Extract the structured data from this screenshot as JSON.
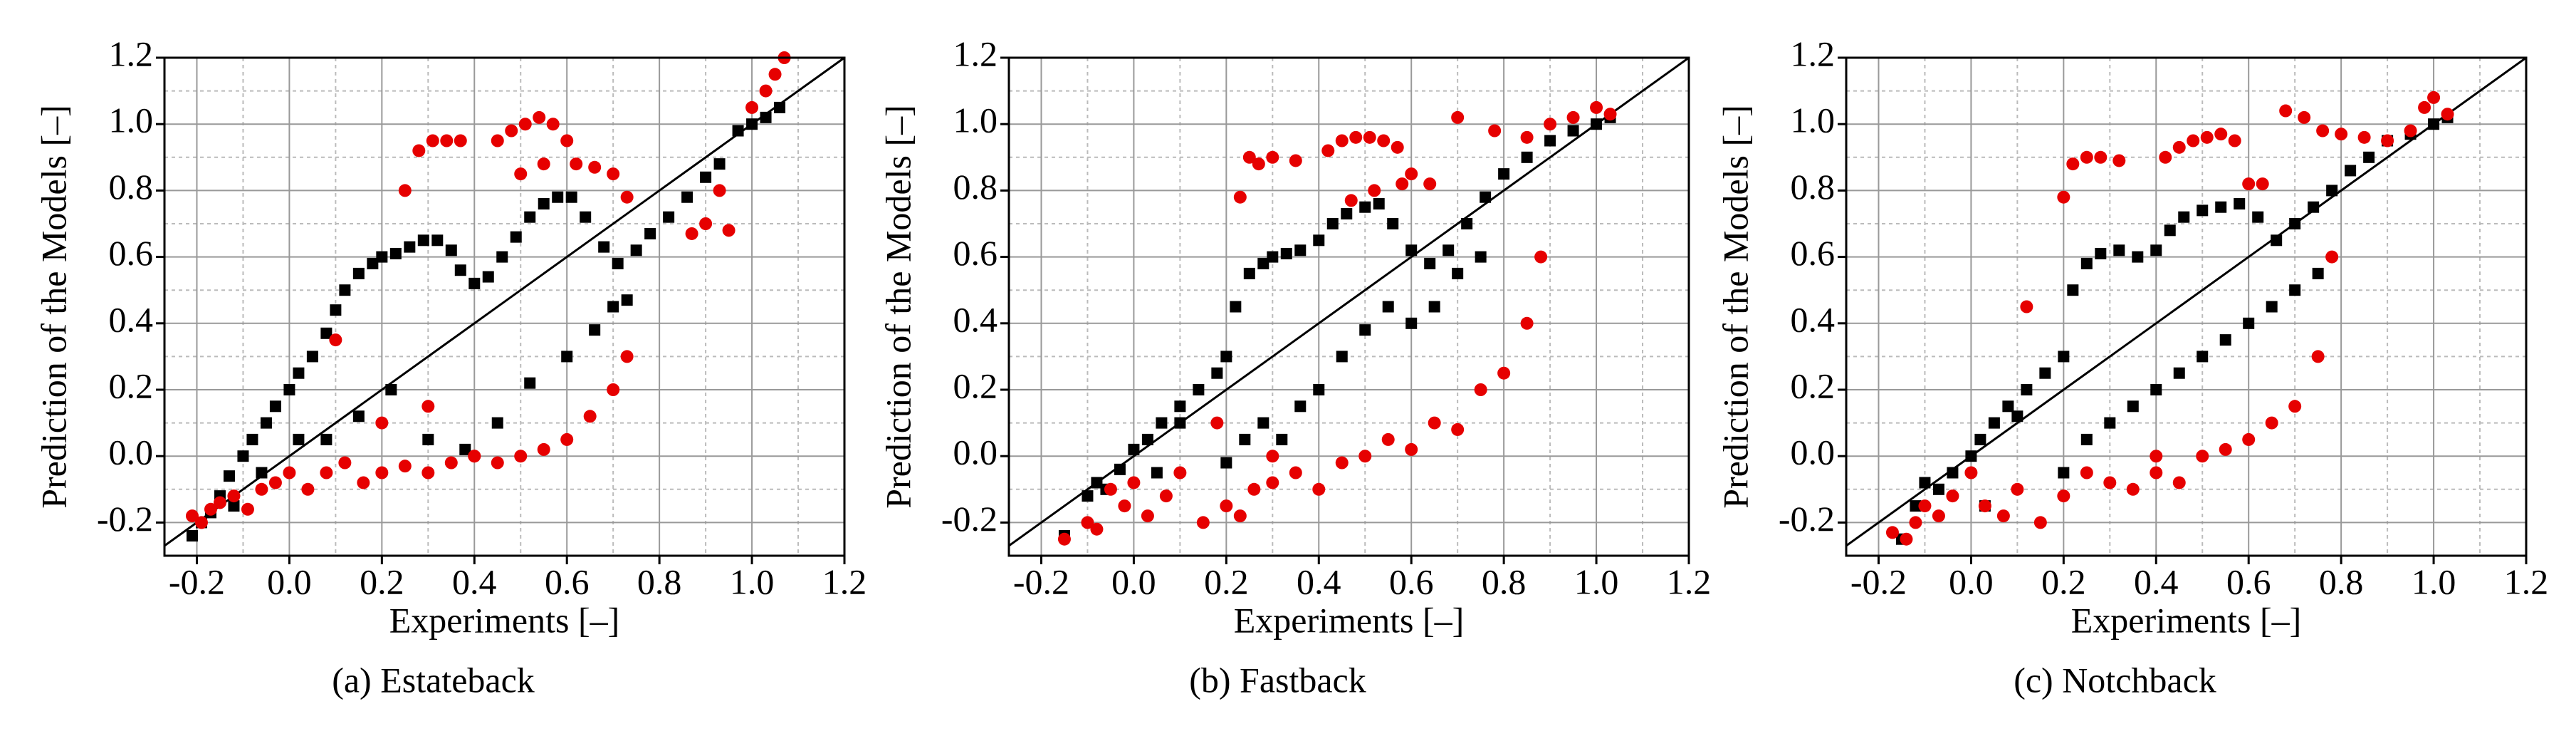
{
  "chart_data": [
    {
      "type": "scatter",
      "caption": "(a) Estateback",
      "xlabel": "Experiments [–]",
      "ylabel": "Prediction of the Models [–]",
      "xlim": [
        -0.27,
        1.2
      ],
      "ylim": [
        -0.3,
        1.2
      ],
      "xticks": [
        -0.2,
        {
          "value": 0,
          "label": "0.0"
        },
        0.2,
        0.4,
        0.6,
        0.8,
        {
          "value": 1,
          "label": "1.0"
        },
        1.2
      ],
      "yticks": [
        -0.2,
        {
          "value": 0,
          "label": "0.0"
        },
        0.2,
        0.4,
        0.6,
        0.8,
        {
          "value": 1,
          "label": "1.0"
        },
        1.2
      ],
      "grid": true,
      "diagonal": true,
      "series": [
        {
          "color": "#000000",
          "marker": "square",
          "x": [
            -0.21,
            -0.19,
            -0.17,
            -0.15,
            -0.13,
            -0.1,
            -0.08,
            -0.05,
            -0.03,
            0.0,
            0.02,
            0.05,
            0.08,
            0.1,
            0.12,
            0.15,
            0.18,
            0.2,
            0.23,
            0.26,
            0.29,
            0.32,
            0.35,
            0.37,
            0.4,
            0.43,
            0.46,
            0.49,
            0.52,
            0.55,
            0.58,
            0.61,
            0.64,
            0.68,
            0.71,
            0.75,
            0.78,
            0.82,
            0.86,
            0.9,
            0.93,
            0.97,
            1.0,
            1.03,
            1.06,
            0.08,
            0.15,
            0.22,
            0.3,
            0.38,
            0.45,
            0.52,
            0.6,
            0.66,
            0.7,
            0.73,
            -0.12,
            -0.06,
            0.02
          ],
          "y": [
            -0.24,
            -0.2,
            -0.17,
            -0.12,
            -0.06,
            0.0,
            0.05,
            0.1,
            0.15,
            0.2,
            0.25,
            0.3,
            0.37,
            0.44,
            0.5,
            0.55,
            0.58,
            0.6,
            0.61,
            0.63,
            0.65,
            0.65,
            0.62,
            0.56,
            0.52,
            0.54,
            0.6,
            0.66,
            0.72,
            0.76,
            0.78,
            0.78,
            0.72,
            0.63,
            0.58,
            0.62,
            0.67,
            0.72,
            0.78,
            0.84,
            0.88,
            0.98,
            1.0,
            1.02,
            1.05,
            0.05,
            0.12,
            0.2,
            0.05,
            0.02,
            0.1,
            0.22,
            0.3,
            0.38,
            0.45,
            0.47,
            -0.15,
            -0.05,
            0.05
          ]
        },
        {
          "color": "#e60000",
          "marker": "circle",
          "x": [
            -0.21,
            -0.19,
            -0.17,
            -0.15,
            -0.12,
            -0.09,
            -0.06,
            -0.03,
            0.0,
            0.04,
            0.08,
            0.12,
            0.16,
            0.2,
            0.25,
            0.3,
            0.35,
            0.4,
            0.45,
            0.5,
            0.55,
            0.6,
            0.65,
            0.7,
            0.73,
            0.25,
            0.28,
            0.31,
            0.34,
            0.37,
            0.45,
            0.48,
            0.51,
            0.54,
            0.57,
            0.6,
            0.5,
            0.55,
            0.62,
            0.66,
            0.7,
            0.73,
            0.87,
            0.9,
            0.93,
            0.95,
            1.0,
            1.03,
            1.05,
            1.07,
            0.1,
            0.2,
            0.3,
            0.4
          ],
          "y": [
            -0.18,
            -0.2,
            -0.16,
            -0.14,
            -0.12,
            -0.16,
            -0.1,
            -0.08,
            -0.05,
            -0.1,
            -0.05,
            -0.02,
            -0.08,
            -0.05,
            -0.03,
            -0.05,
            -0.02,
            0.0,
            -0.02,
            0.0,
            0.02,
            0.05,
            0.12,
            0.2,
            0.3,
            0.8,
            0.92,
            0.95,
            0.95,
            0.95,
            0.95,
            0.98,
            1.0,
            1.02,
            1.0,
            0.95,
            0.85,
            0.88,
            0.88,
            0.87,
            0.85,
            0.78,
            0.67,
            0.7,
            0.8,
            0.68,
            1.05,
            1.1,
            1.15,
            1.2,
            0.35,
            0.1,
            0.15,
            0.0
          ]
        }
      ]
    },
    {
      "type": "scatter",
      "caption": "(b) Fastback",
      "xlabel": "Experiments [–]",
      "ylabel": "Prediction of the Models [–]",
      "xlim": [
        -0.27,
        1.2
      ],
      "ylim": [
        -0.3,
        1.2
      ],
      "xticks": [
        -0.2,
        {
          "value": 0,
          "label": "0.0"
        },
        0.2,
        0.4,
        0.6,
        0.8,
        {
          "value": 1,
          "label": "1.0"
        },
        1.2
      ],
      "yticks": [
        -0.2,
        {
          "value": 0,
          "label": "0.0"
        },
        0.2,
        0.4,
        0.6,
        0.8,
        {
          "value": 1,
          "label": "1.0"
        },
        1.2
      ],
      "grid": true,
      "diagonal": true,
      "series": [
        {
          "color": "#000000",
          "marker": "square",
          "x": [
            -0.15,
            -0.1,
            -0.08,
            -0.06,
            -0.03,
            0.0,
            0.03,
            0.06,
            0.1,
            0.14,
            0.18,
            0.2,
            0.22,
            0.25,
            0.28,
            0.3,
            0.33,
            0.36,
            0.4,
            0.43,
            0.46,
            0.5,
            0.53,
            0.56,
            0.6,
            0.64,
            0.68,
            0.72,
            0.76,
            0.8,
            0.85,
            0.9,
            0.95,
            1.0,
            1.03,
            0.2,
            0.24,
            0.28,
            0.32,
            0.36,
            0.4,
            0.45,
            0.5,
            0.55,
            0.6,
            0.65,
            0.7,
            0.75,
            0.05,
            0.1
          ],
          "y": [
            -0.24,
            -0.12,
            -0.08,
            -0.1,
            -0.04,
            0.02,
            0.05,
            0.1,
            0.15,
            0.2,
            0.25,
            0.3,
            0.45,
            0.55,
            0.58,
            0.6,
            0.61,
            0.62,
            0.65,
            0.7,
            0.73,
            0.75,
            0.76,
            0.7,
            0.62,
            0.58,
            0.62,
            0.7,
            0.78,
            0.85,
            0.9,
            0.95,
            0.98,
            1.0,
            1.02,
            -0.02,
            0.05,
            0.1,
            0.05,
            0.15,
            0.2,
            0.3,
            0.38,
            0.45,
            0.4,
            0.45,
            0.55,
            0.6,
            -0.05,
            0.1
          ]
        },
        {
          "color": "#e60000",
          "marker": "circle",
          "x": [
            -0.15,
            -0.1,
            -0.08,
            -0.05,
            -0.02,
            0.0,
            0.03,
            0.07,
            0.1,
            0.15,
            0.2,
            0.23,
            0.26,
            0.3,
            0.35,
            0.4,
            0.45,
            0.5,
            0.55,
            0.6,
            0.65,
            0.7,
            0.75,
            0.8,
            0.85,
            0.88,
            0.23,
            0.25,
            0.27,
            0.3,
            0.35,
            0.42,
            0.45,
            0.48,
            0.51,
            0.54,
            0.57,
            0.6,
            0.47,
            0.52,
            0.58,
            0.64,
            0.7,
            0.78,
            0.85,
            0.9,
            0.95,
            1.0,
            1.03,
            0.18,
            0.3
          ],
          "y": [
            -0.25,
            -0.2,
            -0.22,
            -0.1,
            -0.15,
            -0.08,
            -0.18,
            -0.12,
            -0.05,
            -0.2,
            -0.15,
            -0.18,
            -0.1,
            -0.08,
            -0.05,
            -0.1,
            -0.02,
            0.0,
            0.05,
            0.02,
            0.1,
            0.08,
            0.2,
            0.25,
            0.4,
            0.6,
            0.78,
            0.9,
            0.88,
            0.9,
            0.89,
            0.92,
            0.95,
            0.96,
            0.96,
            0.95,
            0.93,
            0.85,
            0.77,
            0.8,
            0.82,
            0.82,
            1.02,
            0.98,
            0.96,
            1.0,
            1.02,
            1.05,
            1.03,
            0.1,
            0.0
          ]
        }
      ]
    },
    {
      "type": "scatter",
      "caption": "(c) Notchback",
      "xlabel": "Experiments [–]",
      "ylabel": "Prediction of the Models [–]",
      "xlim": [
        -0.27,
        1.2
      ],
      "ylim": [
        -0.3,
        1.2
      ],
      "xticks": [
        -0.2,
        {
          "value": 0,
          "label": "0.0"
        },
        0.2,
        0.4,
        0.6,
        0.8,
        {
          "value": 1,
          "label": "1.0"
        },
        1.2
      ],
      "yticks": [
        -0.2,
        {
          "value": 0,
          "label": "0.0"
        },
        0.2,
        0.4,
        0.6,
        0.8,
        {
          "value": 1,
          "label": "1.0"
        },
        1.2
      ],
      "grid": true,
      "diagonal": true,
      "series": [
        {
          "color": "#000000",
          "marker": "square",
          "x": [
            -0.15,
            -0.12,
            -0.1,
            -0.07,
            -0.04,
            0.0,
            0.02,
            0.05,
            0.08,
            0.12,
            0.16,
            0.2,
            0.22,
            0.25,
            0.28,
            0.32,
            0.36,
            0.4,
            0.43,
            0.46,
            0.5,
            0.54,
            0.58,
            0.62,
            0.66,
            0.7,
            0.74,
            0.78,
            0.82,
            0.86,
            0.9,
            0.95,
            1.0,
            1.03,
            0.2,
            0.25,
            0.3,
            0.35,
            0.4,
            0.45,
            0.5,
            0.55,
            0.6,
            0.65,
            0.7,
            0.75,
            0.03,
            0.1
          ],
          "y": [
            -0.25,
            -0.15,
            -0.08,
            -0.1,
            -0.05,
            0.0,
            0.05,
            0.1,
            0.15,
            0.2,
            0.25,
            0.3,
            0.5,
            0.58,
            0.61,
            0.62,
            0.6,
            0.62,
            0.68,
            0.72,
            0.74,
            0.75,
            0.76,
            0.72,
            0.65,
            0.7,
            0.75,
            0.8,
            0.86,
            0.9,
            0.95,
            0.97,
            1.0,
            1.02,
            -0.05,
            0.05,
            0.1,
            0.15,
            0.2,
            0.25,
            0.3,
            0.35,
            0.4,
            0.45,
            0.5,
            0.55,
            -0.15,
            0.12
          ]
        },
        {
          "color": "#e60000",
          "marker": "circle",
          "x": [
            -0.17,
            -0.14,
            -0.12,
            -0.1,
            -0.07,
            -0.04,
            0.0,
            0.03,
            0.07,
            0.1,
            0.15,
            0.2,
            0.25,
            0.3,
            0.35,
            0.4,
            0.45,
            0.5,
            0.55,
            0.6,
            0.65,
            0.7,
            0.75,
            0.78,
            0.2,
            0.22,
            0.25,
            0.28,
            0.32,
            0.42,
            0.45,
            0.48,
            0.51,
            0.54,
            0.57,
            0.6,
            0.63,
            0.68,
            0.72,
            0.76,
            0.8,
            0.85,
            0.9,
            0.95,
            0.98,
            1.0,
            1.03,
            0.12,
            0.4
          ],
          "y": [
            -0.23,
            -0.25,
            -0.2,
            -0.15,
            -0.18,
            -0.12,
            -0.05,
            -0.15,
            -0.18,
            -0.1,
            -0.2,
            -0.12,
            -0.05,
            -0.08,
            -0.1,
            -0.05,
            -0.08,
            0.0,
            0.02,
            0.05,
            0.1,
            0.15,
            0.3,
            0.6,
            0.78,
            0.88,
            0.9,
            0.9,
            0.89,
            0.9,
            0.93,
            0.95,
            0.96,
            0.97,
            0.95,
            0.82,
            0.82,
            1.04,
            1.02,
            0.98,
            0.97,
            0.96,
            0.95,
            0.98,
            1.05,
            1.08,
            1.03,
            0.45,
            0.0
          ]
        }
      ]
    }
  ]
}
